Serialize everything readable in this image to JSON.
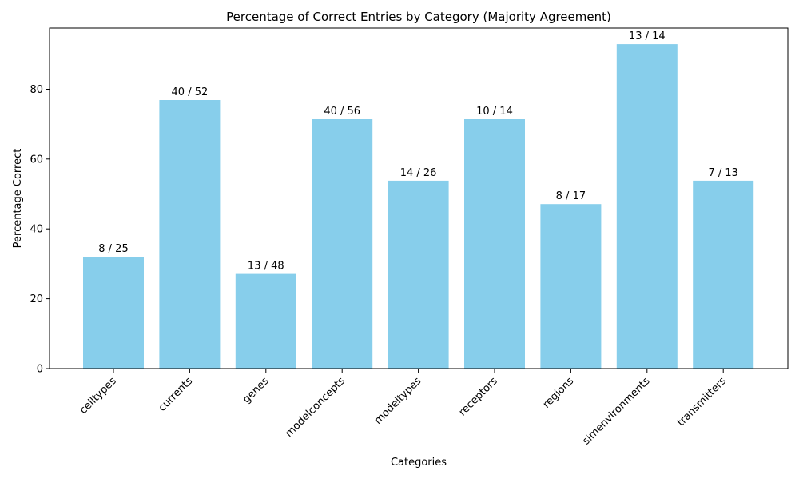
{
  "chart_data": {
    "type": "bar",
    "title": "Percentage of Correct Entries by Category (Majority Agreement)",
    "xlabel": "Categories",
    "ylabel": "Percentage Correct",
    "categories": [
      "celltypes",
      "currents",
      "genes",
      "modelconcepts",
      "modeltypes",
      "receptors",
      "regions",
      "simenvironments",
      "transmitters"
    ],
    "values": [
      32.0,
      76.9,
      27.1,
      71.4,
      53.8,
      71.4,
      47.1,
      92.9,
      53.8
    ],
    "bar_labels": [
      "8 / 25",
      "40 / 52",
      "13 / 48",
      "40 / 56",
      "14 / 26",
      "10 / 14",
      "8 / 17",
      "13 / 14",
      "7 / 13"
    ],
    "ylim": [
      0,
      97.5
    ],
    "yticks": [
      0,
      20,
      40,
      60,
      80
    ],
    "grid": false,
    "bar_color": "#87CEEB"
  }
}
